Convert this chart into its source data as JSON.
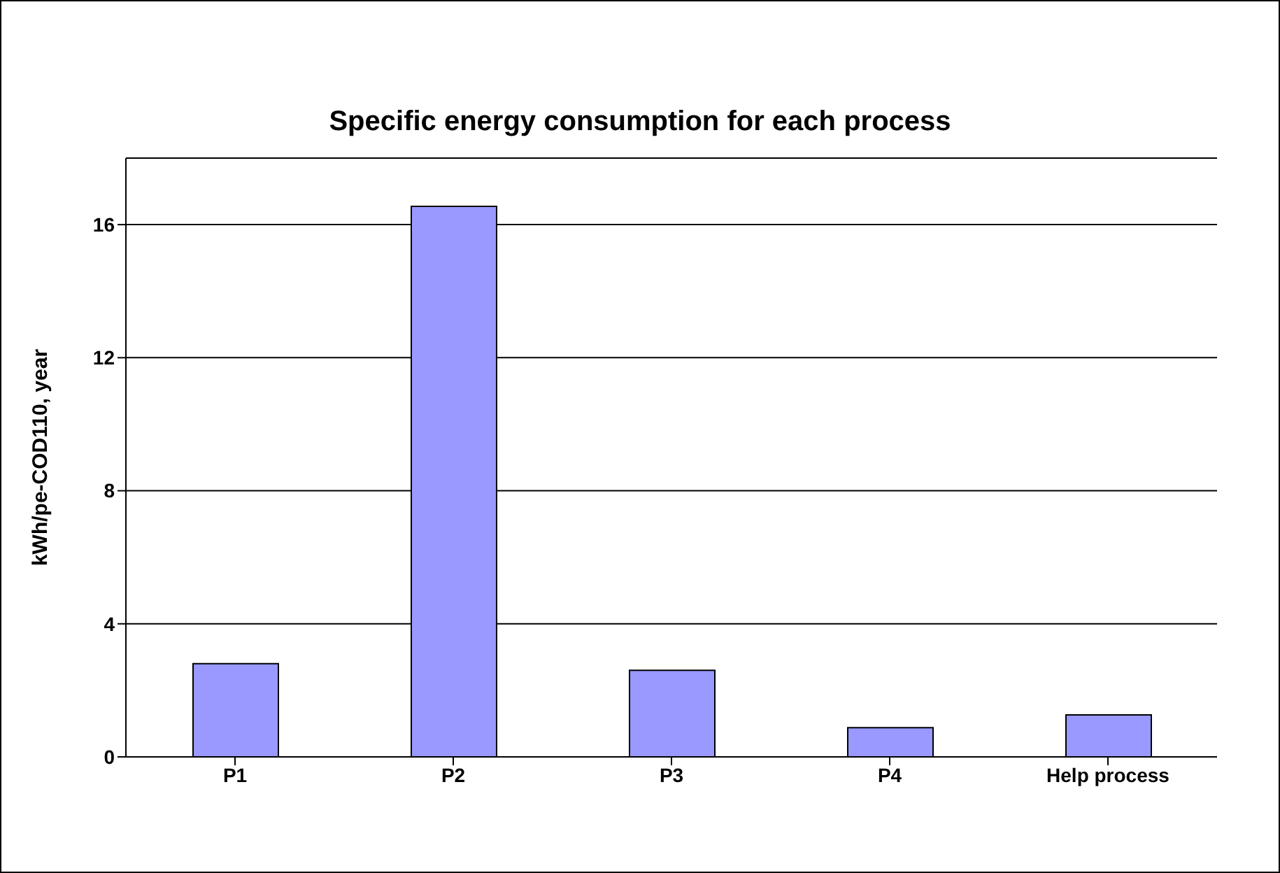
{
  "chart_data": {
    "type": "bar",
    "title": "Specific energy consumption for each process",
    "ylabel": "kWh/pe-COD110, year",
    "categories": [
      "P1",
      "P2",
      "P3",
      "P4",
      "Help process"
    ],
    "values": [
      2.8,
      16.55,
      2.6,
      0.88,
      1.26
    ],
    "color": "#9999ff",
    "ylim": [
      0,
      18
    ],
    "yticks": [
      0,
      4,
      8,
      12,
      16
    ],
    "grid": "y"
  }
}
